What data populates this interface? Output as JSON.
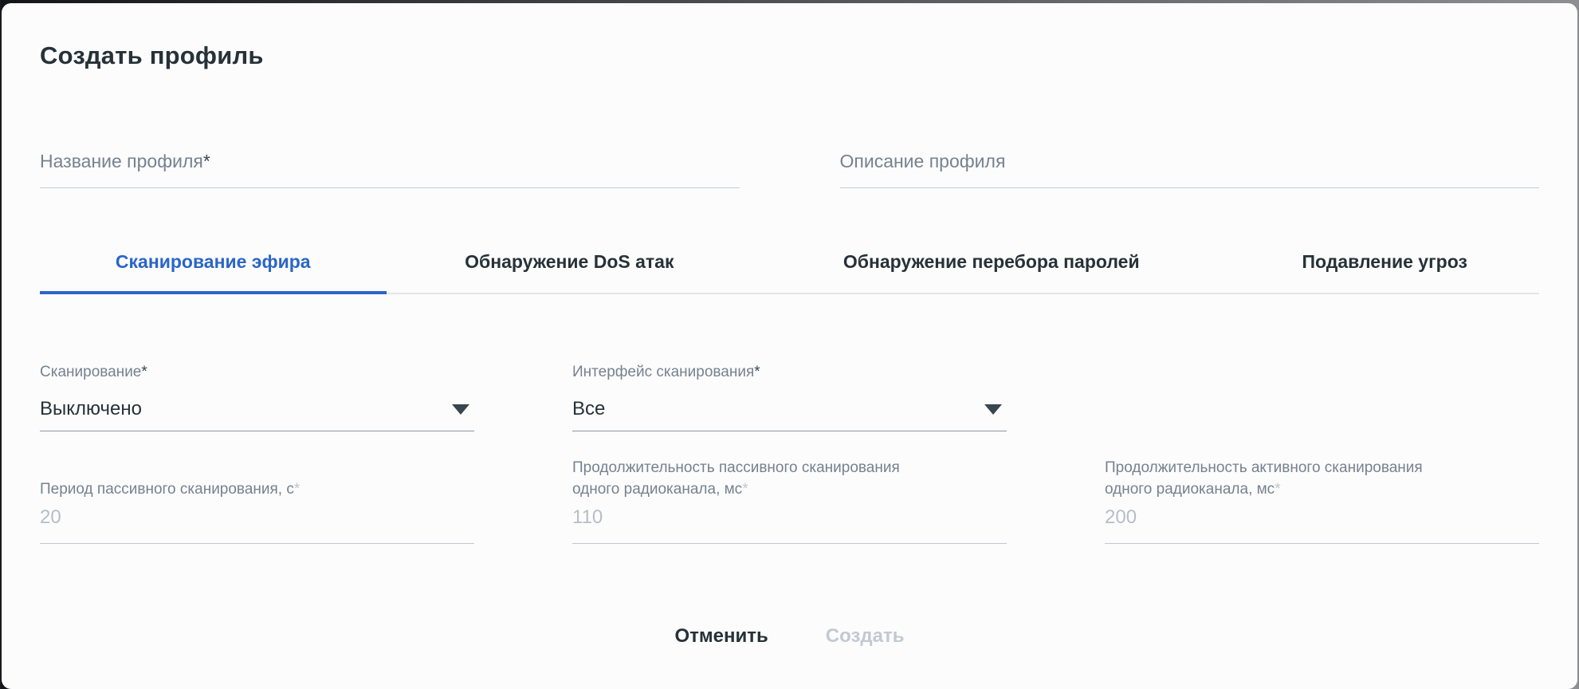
{
  "dialog": {
    "title": "Создать профиль"
  },
  "top_inputs": {
    "name": {
      "placeholder": "Название профиля",
      "required_mark": "*",
      "value": ""
    },
    "description": {
      "placeholder": "Описание профиля",
      "value": ""
    }
  },
  "tabs": [
    {
      "label": "Сканирование эфира",
      "active": true
    },
    {
      "label": "Обнаружение DoS атак",
      "active": false
    },
    {
      "label": "Обнаружение перебора паролей",
      "active": false
    },
    {
      "label": "Подавление угроз",
      "active": false
    }
  ],
  "form": {
    "scanning": {
      "label": "Сканирование",
      "required_mark": "*",
      "value": "Выключено",
      "control": "select",
      "state": "enabled"
    },
    "scan_interface": {
      "label": "Интерфейс сканирования",
      "required_mark": "*",
      "value": "Все",
      "control": "select",
      "state": "enabled"
    },
    "passive_period": {
      "label": "Период пассивного сканирования, с",
      "required_mark": "*",
      "value": "20",
      "control": "input",
      "state": "disabled"
    },
    "passive_duration": {
      "label": "Продолжительность пассивного сканирования\nодного радиоканала, мс",
      "required_mark": "*",
      "value": "110",
      "control": "input",
      "state": "disabled"
    },
    "active_duration": {
      "label": "Продолжительность активного сканирования\nодного радиоканала, мс",
      "required_mark": "*",
      "value": "200",
      "control": "input",
      "state": "disabled"
    }
  },
  "footer": {
    "cancel_label": "Отменить",
    "create_label": "Создать",
    "create_state": "disabled"
  },
  "colors": {
    "accent": "#2a66c6",
    "heading_text": "#263238",
    "label_gray": "#76828f",
    "disabled_text": "#b6bec8"
  }
}
